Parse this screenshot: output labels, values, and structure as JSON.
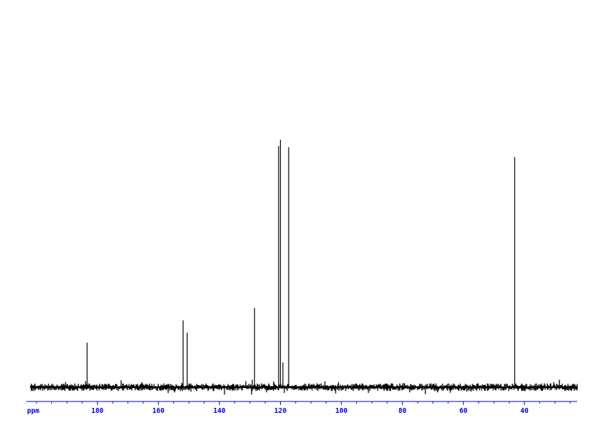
{
  "page": {
    "background": "#ffffff"
  },
  "chart_data": {
    "type": "line",
    "subtype": "13C-NMR-spectrum",
    "title": "",
    "xlabel": "ppm",
    "ylabel": "",
    "legend": null,
    "grid": false,
    "x_axis": {
      "unit_label": "ppm",
      "direction": "decreasing",
      "range_left_ppm": 203.3,
      "range_right_ppm": 22.7,
      "major_tick_values": [
        180,
        160,
        140,
        120,
        100,
        80,
        60,
        40
      ],
      "major_tick_labels": [
        "180",
        "160",
        "140",
        "120",
        "100",
        "80",
        "60",
        "40"
      ],
      "minor_tick_step_ppm": 5,
      "axis_color": "#0000ee",
      "label_color": "#0000ee"
    },
    "trace_color": "#000000",
    "baseline_intensity": 0.0,
    "peaks": [
      {
        "ppm": 183.4,
        "intensity": 0.18
      },
      {
        "ppm": 151.9,
        "intensity": 0.27
      },
      {
        "ppm": 150.6,
        "intensity": 0.22
      },
      {
        "ppm": 128.5,
        "intensity": 0.32
      },
      {
        "ppm": 120.6,
        "intensity": 0.975
      },
      {
        "ppm": 120.0,
        "intensity": 1.0
      },
      {
        "ppm": 119.2,
        "intensity": 0.1
      },
      {
        "ppm": 117.3,
        "intensity": 0.97
      },
      {
        "ppm": 43.2,
        "intensity": 0.93
      }
    ]
  }
}
